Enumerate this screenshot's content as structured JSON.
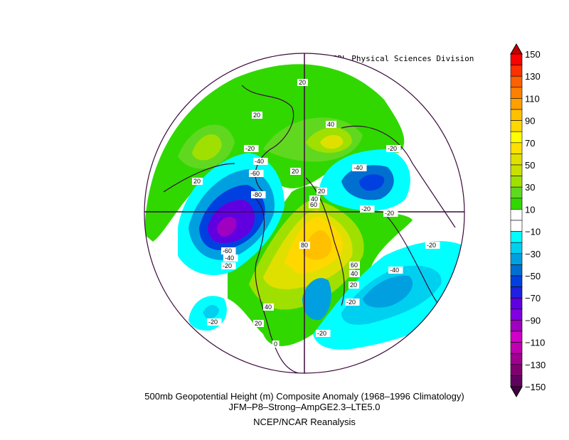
{
  "credit": "NOAA/ESRL Physical Sciences Division",
  "title_line1": "500mb Geopotential Height (m) Composite Anomaly (1968–1996 Climatology)",
  "title_line2": "JFM–P8–Strong–AmpGE2.3–LTE5.0",
  "title_line3": "NCEP/NCAR Reanalysis",
  "colorbar": {
    "labels": [
      "150",
      "130",
      "110",
      "90",
      "70",
      "50",
      "30",
      "10",
      "−10",
      "−30",
      "−50",
      "−70",
      "−90",
      "−110",
      "−130",
      "−150"
    ],
    "colors": [
      "#ff0000",
      "#ff3000",
      "#ff6000",
      "#ff8000",
      "#ffa000",
      "#ffc000",
      "#ffd800",
      "#ffff00",
      "#ffe000",
      "#e0e000",
      "#c8e000",
      "#a0e000",
      "#60d820",
      "#30d800",
      "#ffffff",
      "#ffffff",
      "#00ffff",
      "#00d0f0",
      "#00a0e0",
      "#0070d0",
      "#0040e0",
      "#2020e0",
      "#6000e0",
      "#8000e0",
      "#a000c0",
      "#d000c8",
      "#c000b0",
      "#a00090",
      "#800070",
      "#600060"
    ],
    "top_arrow_color": "#c00000",
    "bottom_arrow_color": "#400040"
  },
  "contour_labels": [
    "20",
    "20",
    "40",
    "20",
    "20",
    "-20",
    "-40",
    "-60",
    "-80",
    "-60",
    "-40",
    "-20",
    "20",
    "40",
    "60",
    "80",
    "-20",
    "-40",
    "-20",
    "-40",
    "-20",
    "60",
    "40",
    "20",
    "-20",
    "40",
    "20",
    "-20",
    "-20",
    "-20",
    "0"
  ]
}
